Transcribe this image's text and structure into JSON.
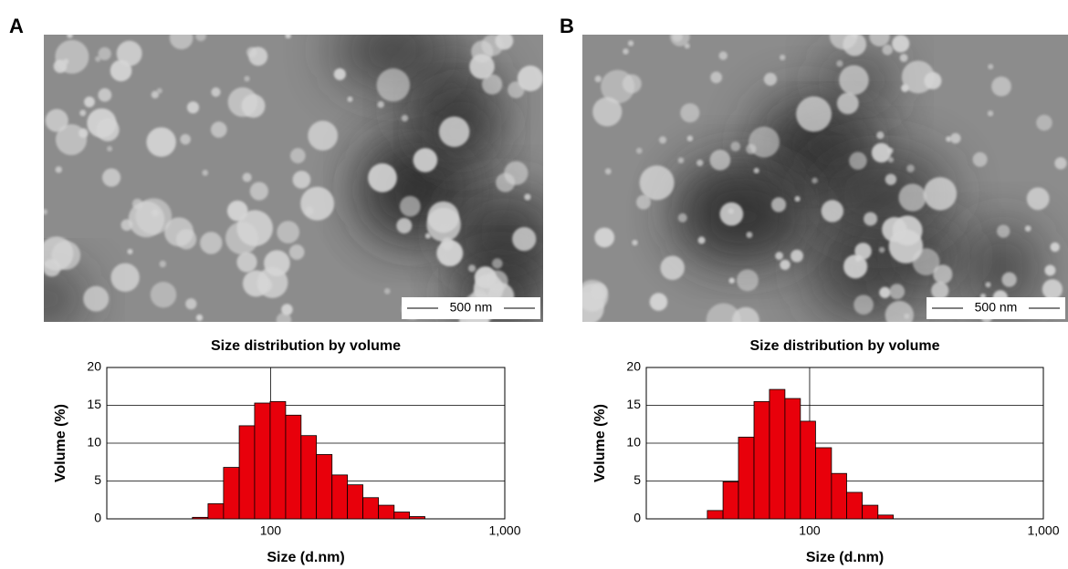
{
  "chart_data": [
    {
      "type": "histogram",
      "panel_label": "A",
      "scale_bar": "500 nm",
      "title": "Size distribution by volume",
      "xlabel": "Size (d.nm)",
      "ylabel": "Volume (%)",
      "bins": [
        46.4,
        54.1,
        63,
        73.5,
        85.5,
        99.6,
        116,
        135,
        157,
        183,
        213,
        248,
        289,
        337,
        392,
        456
      ],
      "values": [
        0.2,
        2,
        6.8,
        12.3,
        15.3,
        15.5,
        13.7,
        11,
        8.5,
        5.8,
        4.5,
        2.8,
        1.8,
        0.9,
        0.3
      ],
      "color": "#e8000b",
      "xscale": "log",
      "xlim": [
        20,
        1000
      ],
      "xticks": [
        100,
        {
          "value": 1000,
          "label": "1,000"
        }
      ],
      "ylim": [
        0,
        20
      ],
      "yticks": [
        0,
        5,
        10,
        15,
        20
      ],
      "grid": true
    },
    {
      "type": "histogram",
      "panel_label": "B",
      "scale_bar": "500 nm",
      "title": "Size distribution by volume",
      "xlabel": "Size (d.nm)",
      "ylabel": "Volume (%)",
      "bins": [
        36.5,
        42.6,
        49.6,
        57.8,
        67.3,
        78.4,
        91.3,
        106,
        124,
        144,
        168,
        196,
        228
      ],
      "values": [
        1.1,
        4.9,
        10.8,
        15.5,
        17.1,
        15.9,
        12.9,
        9.4,
        6,
        3.5,
        1.8,
        0.5
      ],
      "color": "#e8000b",
      "xscale": "log",
      "xlim": [
        20,
        1000
      ],
      "xticks": [
        100,
        {
          "value": 1000,
          "label": "1,000"
        }
      ],
      "ylim": [
        0,
        20
      ],
      "yticks": [
        0,
        5,
        10,
        15,
        20
      ],
      "grid": true
    }
  ]
}
